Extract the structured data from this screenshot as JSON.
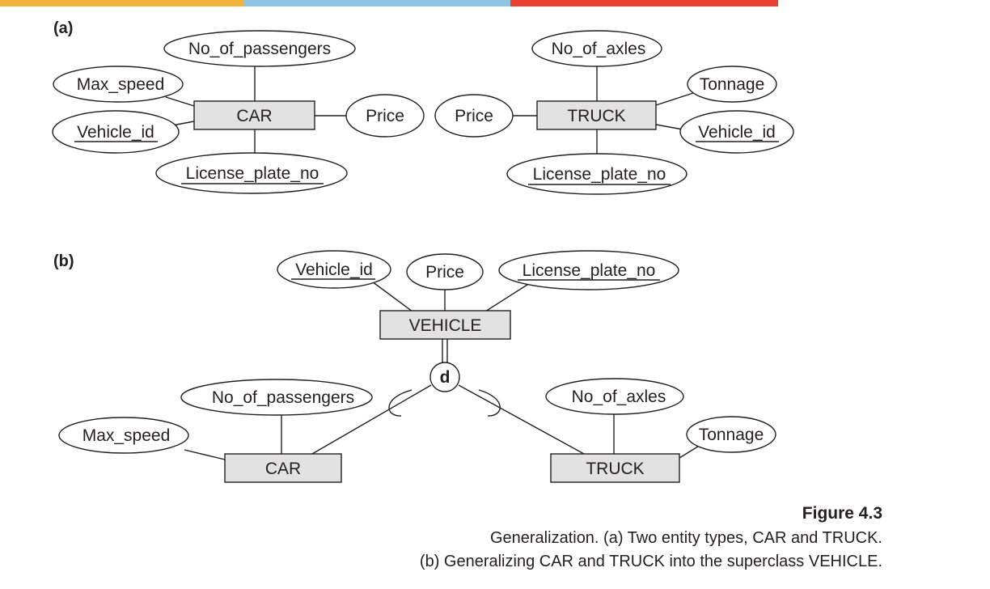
{
  "colors": {
    "bar_yellow": "#f2b33d",
    "bar_blue": "#8ec5e2",
    "bar_red": "#e9402f",
    "entity_fill": "#e2e2e2",
    "ink": "#231f20"
  },
  "part_a": {
    "label": "(a)",
    "car": {
      "name": "CAR",
      "attributes": {
        "no_of_passengers": "No_of_passengers",
        "max_speed": "Max_speed",
        "vehicle_id": "Vehicle_id",
        "license_plate_no": "License_plate_no",
        "price": "Price"
      }
    },
    "truck": {
      "name": "TRUCK",
      "attributes": {
        "no_of_axles": "No_of_axles",
        "tonnage": "Tonnage",
        "vehicle_id": "Vehicle_id",
        "license_plate_no": "License_plate_no",
        "price": "Price"
      }
    }
  },
  "part_b": {
    "label": "(b)",
    "vehicle": {
      "name": "VEHICLE",
      "attributes": {
        "vehicle_id": "Vehicle_id",
        "price": "Price",
        "license_plate_no": "License_plate_no"
      }
    },
    "disjoint_symbol": "d",
    "car": {
      "name": "CAR",
      "attributes": {
        "no_of_passengers": "No_of_passengers",
        "max_speed": "Max_speed"
      }
    },
    "truck": {
      "name": "TRUCK",
      "attributes": {
        "no_of_axles": "No_of_axles",
        "tonnage": "Tonnage"
      }
    }
  },
  "caption": {
    "figure": "Figure 4.3",
    "line1": "Generalization. (a) Two entity types, CAR and TRUCK.",
    "line2": "(b) Generalizing CAR and TRUCK into the superclass VEHICLE."
  }
}
